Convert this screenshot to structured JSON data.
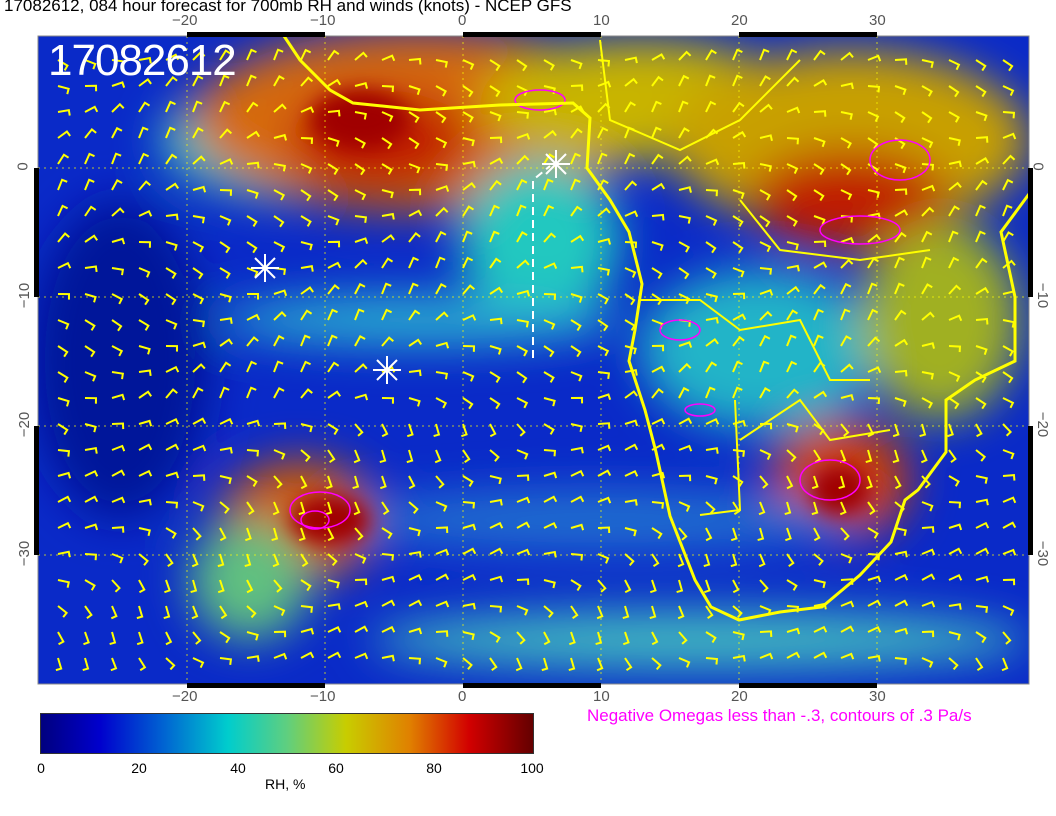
{
  "title": "17082612, 084 hour forecast for 700mb RH and winds (knots) - NCEP GFS",
  "stamp": "17082612",
  "x_ticks": [
    "−20",
    "−10",
    "0",
    "10",
    "20",
    "30"
  ],
  "y_ticks": [
    "0",
    "−10",
    "−20",
    "−30"
  ],
  "colorbar": {
    "ticks": [
      "0",
      "20",
      "40",
      "60",
      "80",
      "100"
    ],
    "label": "RH, %",
    "range": [
      0,
      100
    ]
  },
  "omega_legend": "Negative Omegas less than -.3, contours of .3 Pa/s",
  "colors": {
    "coastline": "#ffff00",
    "wind_barbs": "#ffff00",
    "omega_contours": "#ff00ff",
    "grid": "#ffff00"
  }
}
